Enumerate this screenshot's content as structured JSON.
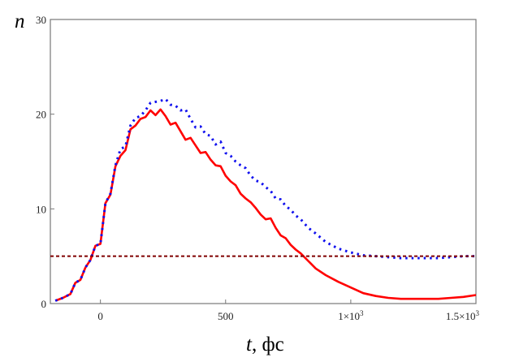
{
  "chart_data": {
    "type": "line",
    "ylabel": "n",
    "xlabel_var": "t",
    "xlabel_unit": ", фс",
    "xlim": [
      -200,
      1500
    ],
    "ylim": [
      0,
      30
    ],
    "x_ticks": [
      {
        "value": 0,
        "label": "0"
      },
      {
        "value": 500,
        "label": "500"
      },
      {
        "value": 1000,
        "label": "1×10",
        "sup": "3"
      },
      {
        "value": 1500,
        "label": "1.5×10",
        "sup": "3"
      }
    ],
    "y_ticks": [
      {
        "value": 0,
        "label": "0"
      },
      {
        "value": 10,
        "label": "10"
      },
      {
        "value": 20,
        "label": "20"
      },
      {
        "value": 30,
        "label": "30"
      }
    ],
    "grid": false,
    "series": [
      {
        "style": "solid",
        "color": "#ff0000",
        "x": [
          -180,
          -150,
          -120,
          -100,
          -80,
          -60,
          -40,
          -20,
          0,
          20,
          40,
          60,
          80,
          100,
          120,
          140,
          160,
          180,
          200,
          220,
          240,
          260,
          280,
          300,
          320,
          340,
          360,
          380,
          400,
          420,
          440,
          460,
          480,
          500,
          520,
          540,
          560,
          580,
          600,
          620,
          640,
          660,
          680,
          700,
          720,
          740,
          760,
          780,
          800,
          830,
          860,
          900,
          950,
          1000,
          1050,
          1100,
          1150,
          1200,
          1250,
          1300,
          1350,
          1400,
          1450,
          1500
        ],
        "y": [
          0.3,
          0.6,
          1.0,
          2.2,
          2.5,
          3.8,
          4.6,
          6.1,
          6.3,
          10.6,
          11.5,
          14.5,
          15.6,
          16.2,
          18.4,
          18.8,
          19.5,
          19.7,
          20.4,
          19.9,
          20.5,
          19.8,
          18.9,
          19.1,
          18.2,
          17.3,
          17.5,
          16.7,
          15.9,
          16.0,
          15.2,
          14.6,
          14.5,
          13.5,
          12.9,
          12.5,
          11.6,
          11.1,
          10.7,
          10.1,
          9.4,
          8.9,
          9.0,
          8.0,
          7.2,
          6.9,
          6.2,
          5.7,
          5.3,
          4.5,
          3.7,
          3.0,
          2.3,
          1.7,
          1.1,
          0.8,
          0.6,
          0.5,
          0.5,
          0.5,
          0.5,
          0.6,
          0.7,
          0.9
        ]
      },
      {
        "style": "dotted",
        "color": "#1010ee",
        "x": [
          -180,
          -150,
          -120,
          -100,
          -80,
          -60,
          -40,
          -20,
          0,
          20,
          40,
          60,
          80,
          100,
          120,
          140,
          160,
          180,
          200,
          220,
          240,
          260,
          280,
          300,
          320,
          340,
          360,
          380,
          400,
          420,
          440,
          460,
          480,
          500,
          520,
          540,
          560,
          580,
          600,
          620,
          640,
          660,
          680,
          700,
          720,
          740,
          760,
          780,
          800,
          830,
          860,
          900,
          950,
          1000,
          1050,
          1100,
          1150,
          1200,
          1250,
          1300,
          1350,
          1400,
          1450,
          1500
        ],
        "y": [
          0.3,
          0.6,
          1.0,
          2.2,
          2.5,
          3.8,
          4.6,
          6.1,
          6.3,
          10.6,
          11.6,
          14.6,
          16.3,
          16.6,
          18.8,
          19.6,
          19.8,
          20.4,
          21.2,
          21.3,
          21.4,
          21.6,
          21.0,
          20.9,
          20.4,
          20.5,
          19.5,
          18.6,
          18.7,
          17.9,
          17.7,
          16.8,
          17.1,
          15.9,
          15.6,
          15.0,
          14.6,
          14.3,
          13.5,
          13.0,
          12.8,
          12.3,
          11.9,
          11.1,
          11.0,
          10.3,
          9.9,
          9.3,
          8.9,
          8.0,
          7.4,
          6.5,
          5.8,
          5.4,
          5.1,
          5.0,
          4.9,
          4.8,
          4.8,
          4.8,
          4.8,
          4.9,
          5.0,
          5.0
        ]
      },
      {
        "style": "dashed",
        "color": "#800000",
        "x": [
          -200,
          1500
        ],
        "y": [
          5,
          5
        ]
      }
    ]
  }
}
